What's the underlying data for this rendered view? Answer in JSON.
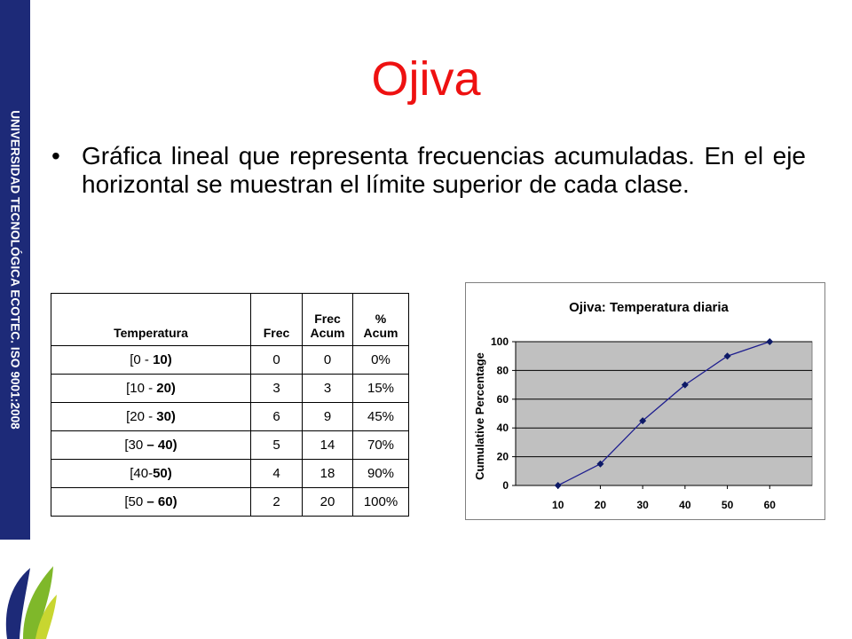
{
  "side_band": {
    "text": "UNIVERSIDAD TECNOLÓGICA ECOTEC. ISO 9001:2008",
    "color": "#1d2a78"
  },
  "slide": {
    "title": "Ojiva",
    "bullet": "•",
    "bullet_text": "Gráfica lineal que representa frecuencias acumuladas. En el eje horizontal se muestran el límite superior de cada clase."
  },
  "table": {
    "headers": [
      "Temperatura",
      "Frec",
      "Frec",
      "Acum",
      "%",
      "Acum"
    ],
    "rows": [
      {
        "temp_open": "[0 - ",
        "temp_close": "10)",
        "frec": "0",
        "acum": "0",
        "pct": "0%"
      },
      {
        "temp_open": "[10 - ",
        "temp_close": "20)",
        "frec": "3",
        "acum": "3",
        "pct": "15%"
      },
      {
        "temp_open": "[20 - ",
        "temp_close": "30)",
        "frec": "6",
        "acum": "9",
        "pct": "45%"
      },
      {
        "temp_open": "[30 ",
        "temp_close": "– 40)",
        "frec": "5",
        "acum": "14",
        "pct": "70%"
      },
      {
        "temp_open": "[40-",
        "temp_close": "50)",
        "frec": "4",
        "acum": "18",
        "pct": "90%"
      },
      {
        "temp_open": "[50 ",
        "temp_close": "– 60)",
        "frec": "2",
        "acum": "20",
        "pct": "100%"
      }
    ]
  },
  "chart_data": {
    "type": "line",
    "title": "Ojiva: Temperatura diaria",
    "xlabel": "",
    "ylabel": "Cumulative Percentage",
    "x": [
      10,
      20,
      30,
      40,
      50,
      60
    ],
    "series": [
      {
        "values": [
          0,
          15,
          45,
          70,
          90,
          100
        ]
      }
    ],
    "yticks": [
      0,
      20,
      40,
      60,
      80,
      100
    ],
    "ylim": [
      0,
      100
    ],
    "grid": true,
    "colors": {
      "plot_bg": "#c0c0c0",
      "line": "#1f1f8f",
      "marker": "#0d1a66",
      "grid": "#000000"
    }
  }
}
